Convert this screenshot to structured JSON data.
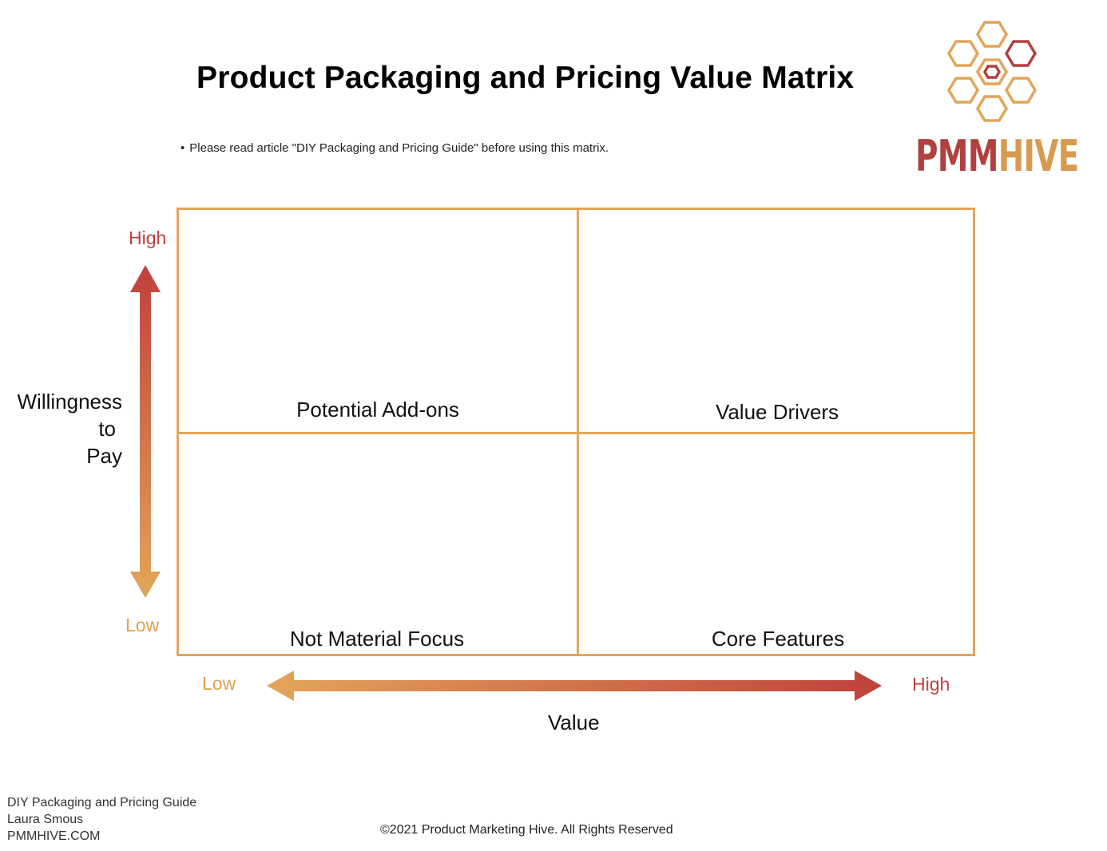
{
  "title": "Product Packaging and Pricing Value Matrix",
  "note": "Please read article \"DIY Packaging and Pricing Guide\" before using this matrix.",
  "logo": {
    "brand_primary": "PMM",
    "brand_secondary": "HIVE",
    "colors": {
      "primary": "#b0413e",
      "secondary": "#d89a4e"
    }
  },
  "matrix": {
    "quadrants": {
      "top_left": "Potential Add-ons",
      "top_right": "Value Drivers",
      "bottom_left": "Not Material Focus",
      "bottom_right": "Core Features"
    },
    "border_color": "#e3a55a"
  },
  "y_axis": {
    "title_lines": [
      "Willingness",
      "to",
      "Pay"
    ],
    "high": "High",
    "low": "Low"
  },
  "x_axis": {
    "title": "Value",
    "high": "High",
    "low": "Low"
  },
  "footer": {
    "lines": [
      "DIY Packaging and Pricing Guide",
      "Laura Smous",
      "PMMHIVE.COM"
    ],
    "copyright": "©2021 Product Marketing Hive. All Rights Reserved"
  }
}
